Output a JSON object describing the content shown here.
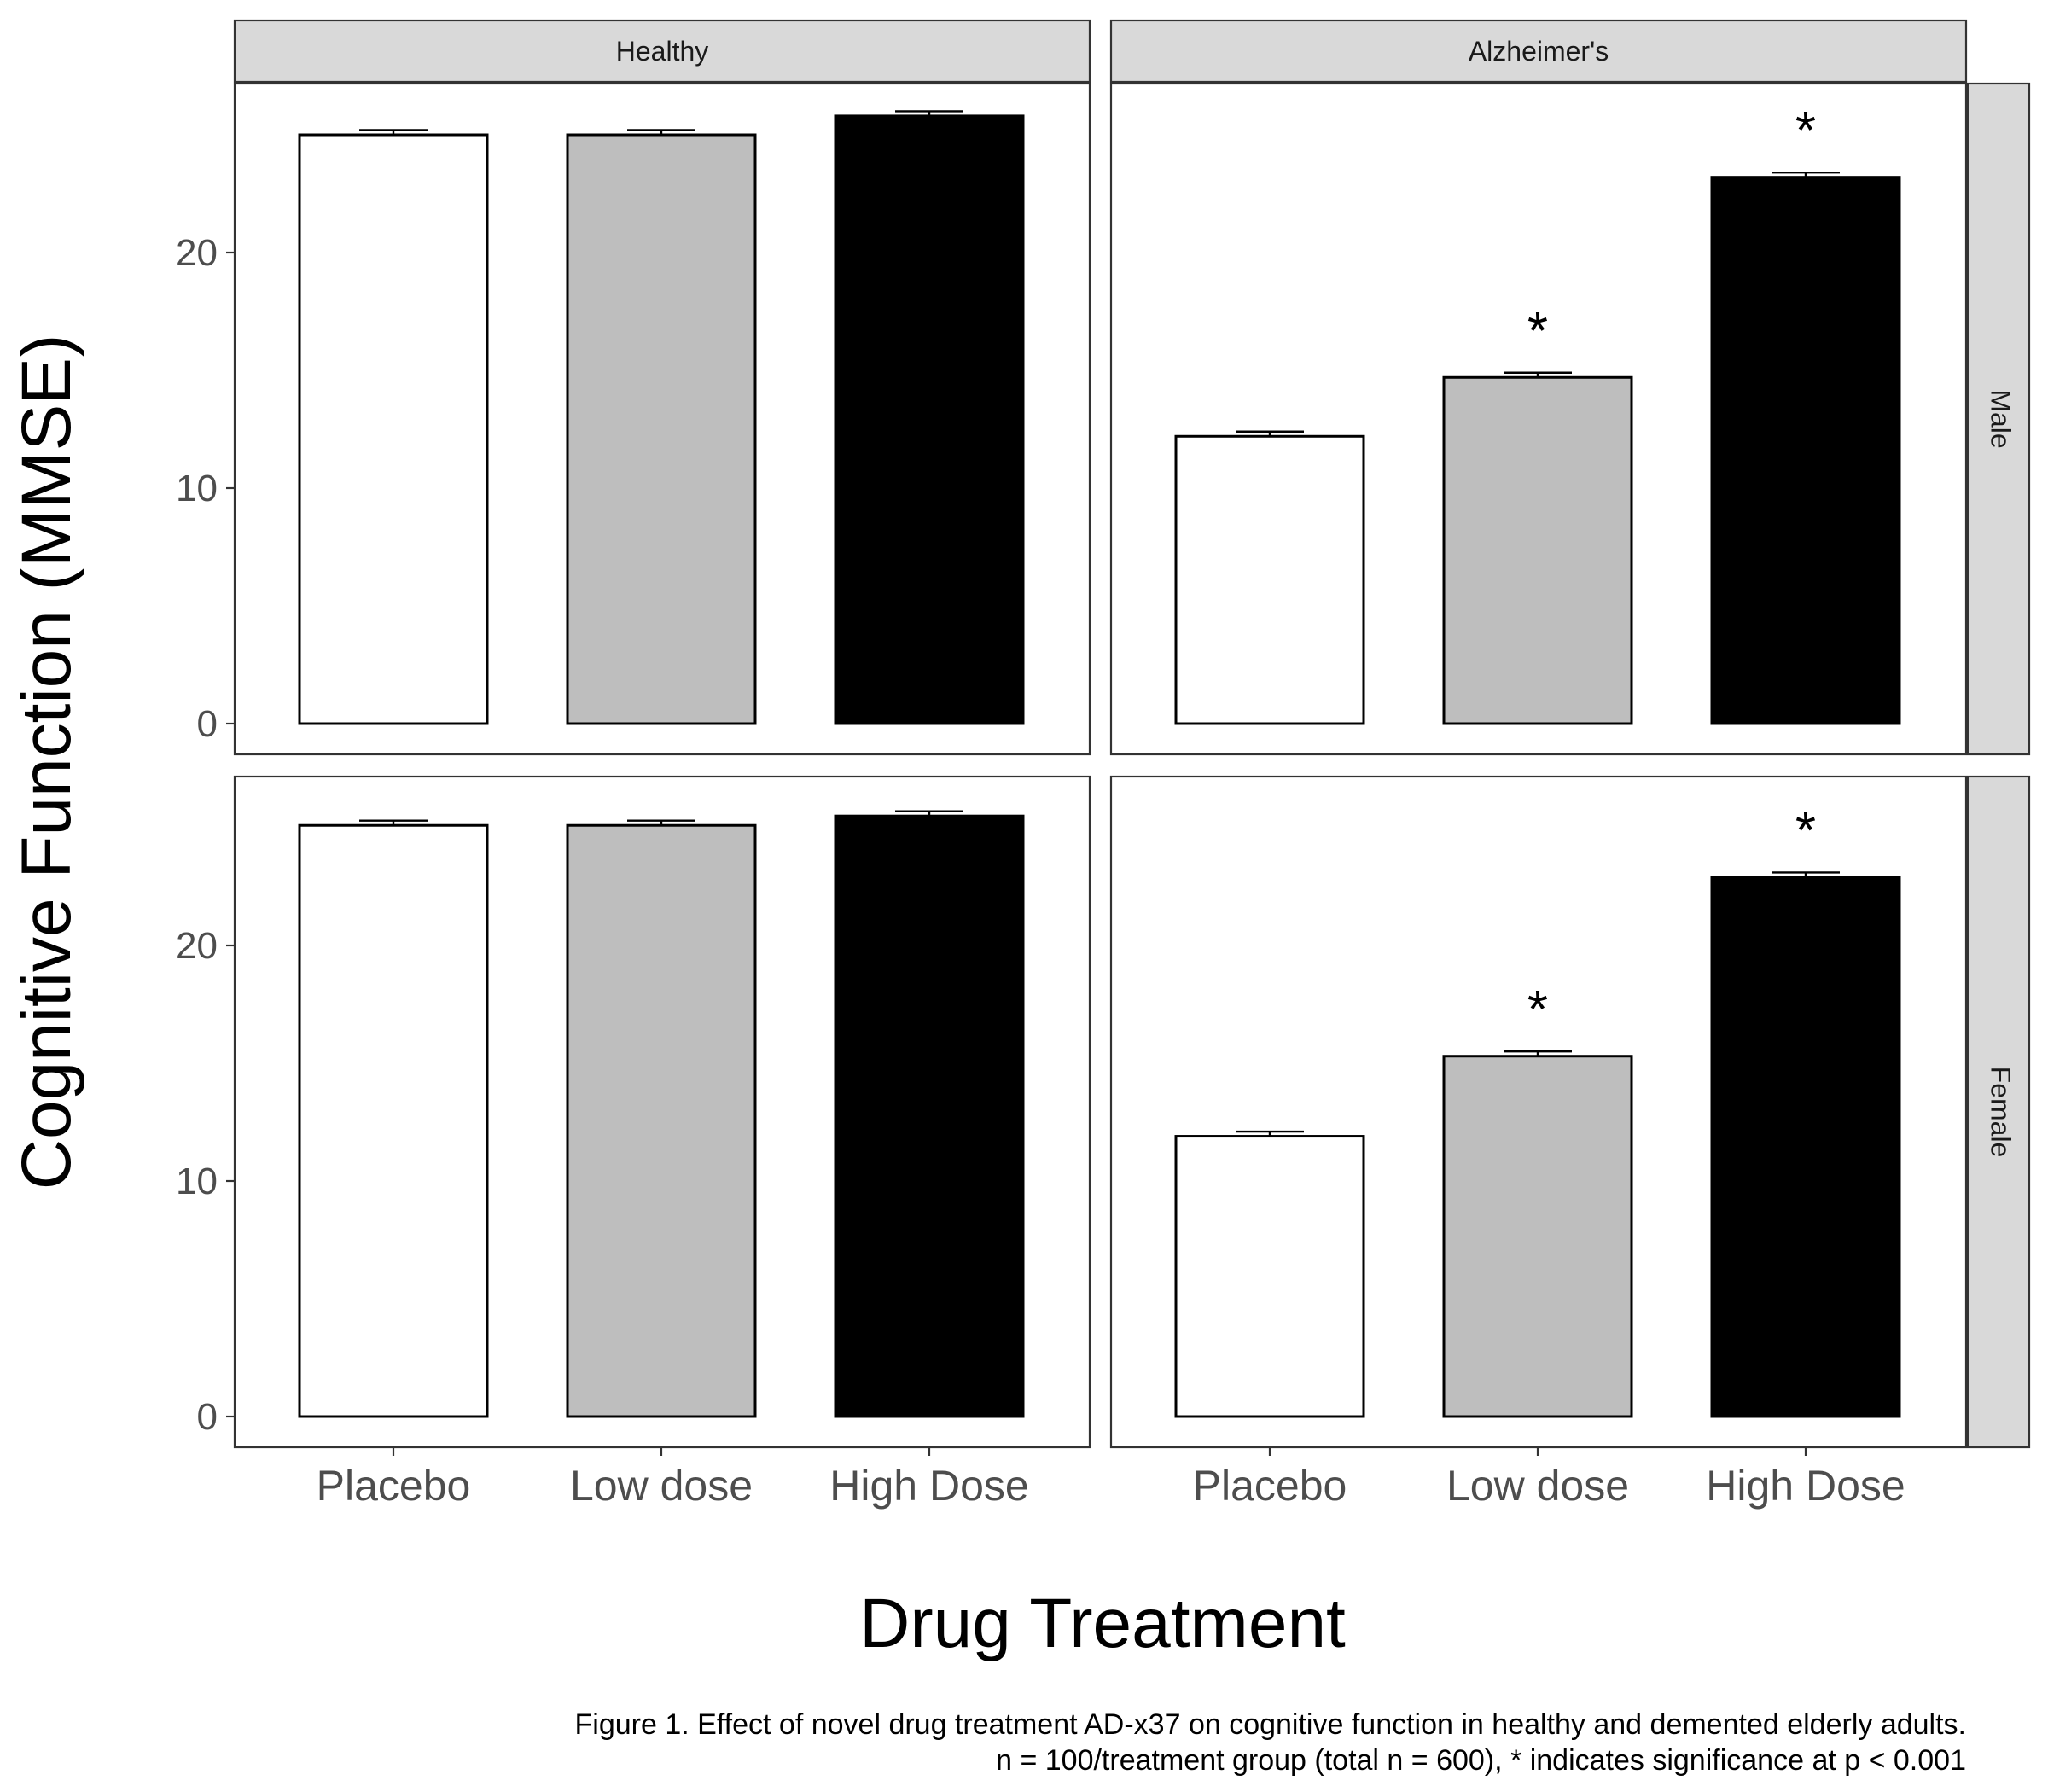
{
  "chart_data": {
    "type": "bar",
    "facet_columns": [
      "Healthy",
      "Alzheimer's"
    ],
    "facet_rows": [
      "Male",
      "Female"
    ],
    "categories": [
      "Placebo",
      "Low dose",
      "High Dose"
    ],
    "fill_colors": [
      "#ffffff",
      "#bebebe",
      "#000000"
    ],
    "panels": [
      {
        "column": "Healthy",
        "row": "Male",
        "values": [
          25.0,
          25.0,
          25.8
        ],
        "errors": [
          0.2,
          0.2,
          0.2
        ],
        "significant": [
          false,
          false,
          false
        ]
      },
      {
        "column": "Alzheimer's",
        "row": "Male",
        "values": [
          12.2,
          14.7,
          23.2
        ],
        "errors": [
          0.2,
          0.2,
          0.2
        ],
        "significant": [
          false,
          true,
          true
        ]
      },
      {
        "column": "Healthy",
        "row": "Female",
        "values": [
          25.1,
          25.1,
          25.5
        ],
        "errors": [
          0.2,
          0.2,
          0.2
        ],
        "significant": [
          false,
          false,
          false
        ]
      },
      {
        "column": "Alzheimer's",
        "row": "Female",
        "values": [
          11.9,
          15.3,
          22.9
        ],
        "errors": [
          0.2,
          0.2,
          0.2
        ],
        "significant": [
          false,
          true,
          true
        ]
      }
    ],
    "significance_symbol": "*",
    "ylim": [
      0,
      28.5
    ],
    "yticks": [
      0,
      10,
      20
    ],
    "xlabel": "Drug Treatment",
    "ylabel": "Cognitive Function (MMSE)",
    "grid": false,
    "legend": "none"
  },
  "caption": {
    "line1": "Figure 1. Effect of novel drug treatment AD-x37 on cognitive function in healthy and demented elderly adults.",
    "line2": "n = 100/treatment group (total n = 600), * indicates significance at p < 0.001"
  }
}
